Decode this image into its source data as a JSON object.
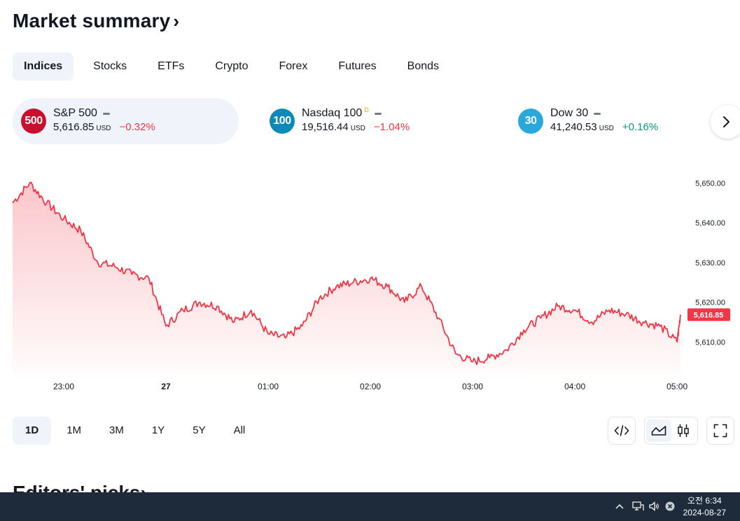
{
  "header": {
    "title": "Market summary",
    "chevron": "›"
  },
  "tabs": [
    {
      "label": "Indices",
      "active": true
    },
    {
      "label": "Stocks",
      "active": false
    },
    {
      "label": "ETFs",
      "active": false
    },
    {
      "label": "Crypto",
      "active": false
    },
    {
      "label": "Forex",
      "active": false
    },
    {
      "label": "Futures",
      "active": false
    },
    {
      "label": "Bonds",
      "active": false
    }
  ],
  "indices": [
    {
      "badge": "500",
      "badge_color": "#c8102e",
      "name": "S&P 500",
      "suffix": "",
      "price": "5,616.85",
      "currency": "USD",
      "change": "−0.32%",
      "direction": "neg",
      "active": true
    },
    {
      "badge": "100",
      "badge_color": "#0b8ab8",
      "name": "Nasdaq 100",
      "suffix": "D",
      "price": "19,516.44",
      "currency": "USD",
      "change": "−1.04%",
      "direction": "neg",
      "active": false
    },
    {
      "badge": "30",
      "badge_color": "#29a8dc",
      "name": "Dow 30",
      "suffix": "",
      "price": "41,240.53",
      "currency": "USD",
      "change": "+0.16%",
      "direction": "pos",
      "active": false
    }
  ],
  "chart_data": {
    "type": "area",
    "series": [
      {
        "name": "S&P 500",
        "color": "#f23645"
      }
    ],
    "x": [
      "22:30",
      "22:40",
      "22:50",
      "23:00",
      "23:10",
      "23:20",
      "23:30",
      "23:40",
      "23:50",
      "00:00",
      "00:10",
      "00:20",
      "00:30",
      "00:40",
      "00:50",
      "01:00",
      "01:10",
      "01:20",
      "01:30",
      "01:40",
      "01:50",
      "02:00",
      "02:10",
      "02:20",
      "02:30",
      "02:40",
      "02:50",
      "03:00",
      "03:10",
      "03:20",
      "03:30",
      "03:40",
      "03:50",
      "04:00",
      "04:10",
      "04:20",
      "04:30",
      "04:40",
      "04:50",
      "05:00",
      "05:02"
    ],
    "y": [
      5645,
      5650,
      5645,
      5641,
      5638,
      5630,
      5629,
      5627,
      5626,
      5614,
      5618,
      5620,
      5619,
      5615,
      5618,
      5612,
      5611,
      5614,
      5621,
      5624,
      5625,
      5626,
      5624,
      5620,
      5624,
      5616,
      5607,
      5605,
      5606,
      5608,
      5613,
      5616,
      5619,
      5618,
      5615,
      5618,
      5617,
      5615,
      5614,
      5610,
      5616.85
    ],
    "ylim": [
      5603,
      5652
    ],
    "yticks": [
      "5,650.00",
      "5,640.00",
      "5,630.00",
      "5,620.00",
      "5,610.00"
    ],
    "ytick_values": [
      5650,
      5640,
      5630,
      5620,
      5610
    ],
    "xticks": [
      "23:00",
      "27",
      "01:00",
      "02:00",
      "03:00",
      "04:00",
      "05:00"
    ],
    "last_label": "5,616.85",
    "grid": false
  },
  "ranges": [
    {
      "label": "1D",
      "active": true
    },
    {
      "label": "1M",
      "active": false
    },
    {
      "label": "3M",
      "active": false
    },
    {
      "label": "1Y",
      "active": false
    },
    {
      "label": "5Y",
      "active": false
    },
    {
      "label": "All",
      "active": false
    }
  ],
  "tools": {
    "embed": "code-icon",
    "area": "area-chart-icon",
    "candles": "candlestick-icon",
    "fullscreen": "fullscreen-icon"
  },
  "editors": {
    "title": "Editors' picks",
    "chevron": "›"
  },
  "taskbar": {
    "time": "오전 6:34",
    "date": "2024-08-27"
  }
}
